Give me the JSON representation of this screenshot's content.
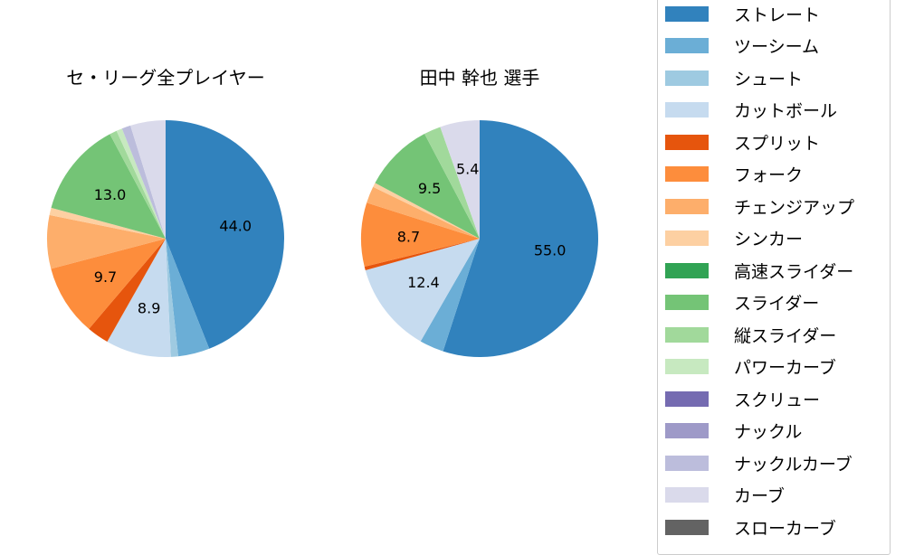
{
  "chart_data": [
    {
      "type": "pie",
      "title": "セ・リーグ全プレイヤー",
      "start_angle": 90,
      "direction": "clockwise",
      "categories": [
        "ストレート",
        "ツーシーム",
        "シュート",
        "カットボール",
        "スプリット",
        "フォーク",
        "チェンジアップ",
        "シンカー",
        "高速スライダー",
        "スライダー",
        "縦スライダー",
        "パワーカーブ",
        "スクリュー",
        "ナックル",
        "ナックルカーブ",
        "カーブ",
        "スローカーブ"
      ],
      "values": [
        44.0,
        4.3,
        1.0,
        8.9,
        3.0,
        9.7,
        7.3,
        1.0,
        0.0,
        13.0,
        1.0,
        0.8,
        0.0,
        0.0,
        1.2,
        4.8,
        0.0
      ],
      "labels_shown": {
        "ストレート": "44.0",
        "カットボール": "8.9",
        "フォーク": "9.7",
        "スライダー": "13.0"
      }
    },
    {
      "type": "pie",
      "title": "田中 幹也  選手",
      "start_angle": 90,
      "direction": "clockwise",
      "categories": [
        "ストレート",
        "ツーシーム",
        "シュート",
        "カットボール",
        "スプリット",
        "フォーク",
        "チェンジアップ",
        "シンカー",
        "高速スライダー",
        "スライダー",
        "縦スライダー",
        "パワーカーブ",
        "スクリュー",
        "ナックル",
        "ナックルカーブ",
        "カーブ",
        "スローカーブ"
      ],
      "values": [
        55.0,
        3.3,
        0.0,
        12.4,
        0.5,
        8.7,
        2.3,
        0.6,
        0.0,
        9.5,
        2.3,
        0.0,
        0.0,
        0.0,
        0.0,
        5.4,
        0.0
      ],
      "labels_shown": {
        "ストレート": "55.0",
        "カットボール": "12.4",
        "フォーク": "8.7",
        "スライダー": "9.5",
        "カーブ": "5.4"
      }
    }
  ],
  "titles": {
    "left": "セ・リーグ全プレイヤー",
    "right": "田中 幹也  選手"
  },
  "legend": {
    "items": [
      {
        "label": "ストレート",
        "color": "#3182bd"
      },
      {
        "label": "ツーシーム",
        "color": "#6baed6"
      },
      {
        "label": "シュート",
        "color": "#9ecae1"
      },
      {
        "label": "カットボール",
        "color": "#c6dbef"
      },
      {
        "label": "スプリット",
        "color": "#e6550d"
      },
      {
        "label": "フォーク",
        "color": "#fd8d3c"
      },
      {
        "label": "チェンジアップ",
        "color": "#fdae6b"
      },
      {
        "label": "シンカー",
        "color": "#fdd0a2"
      },
      {
        "label": "高速スライダー",
        "color": "#31a354"
      },
      {
        "label": "スライダー",
        "color": "#74c476"
      },
      {
        "label": "縦スライダー",
        "color": "#a1d99b"
      },
      {
        "label": "パワーカーブ",
        "color": "#c7e9c0"
      },
      {
        "label": "スクリュー",
        "color": "#756bb1"
      },
      {
        "label": "ナックル",
        "color": "#9e9ac8"
      },
      {
        "label": "ナックルカーブ",
        "color": "#bcbddc"
      },
      {
        "label": "カーブ",
        "color": "#dadaeb"
      },
      {
        "label": "スローカーブ",
        "color": "#636363"
      }
    ]
  }
}
